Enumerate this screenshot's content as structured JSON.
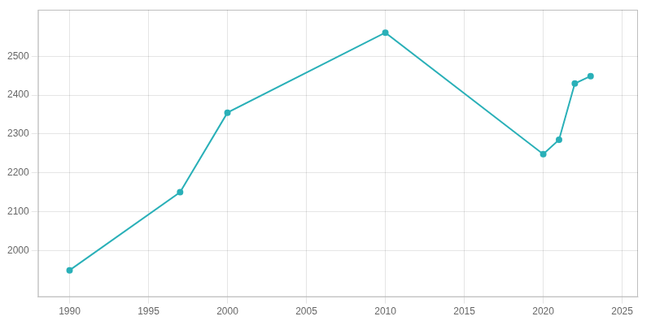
{
  "chart_data": {
    "type": "line",
    "x": [
      1990,
      1997,
      2000,
      2010,
      2020,
      2021,
      2022,
      2023
    ],
    "values": [
      1949,
      2150,
      2355,
      2561,
      2248,
      2285,
      2430,
      2449
    ],
    "color": "#2ab0b8",
    "marker": "circle",
    "xlim": [
      1988,
      2026
    ],
    "ylim": [
      1880,
      2620
    ],
    "xticks": [
      1990,
      1995,
      2000,
      2005,
      2010,
      2015,
      2020,
      2025
    ],
    "yticks": [
      2000,
      2100,
      2200,
      2300,
      2400,
      2500
    ],
    "grid": true
  }
}
